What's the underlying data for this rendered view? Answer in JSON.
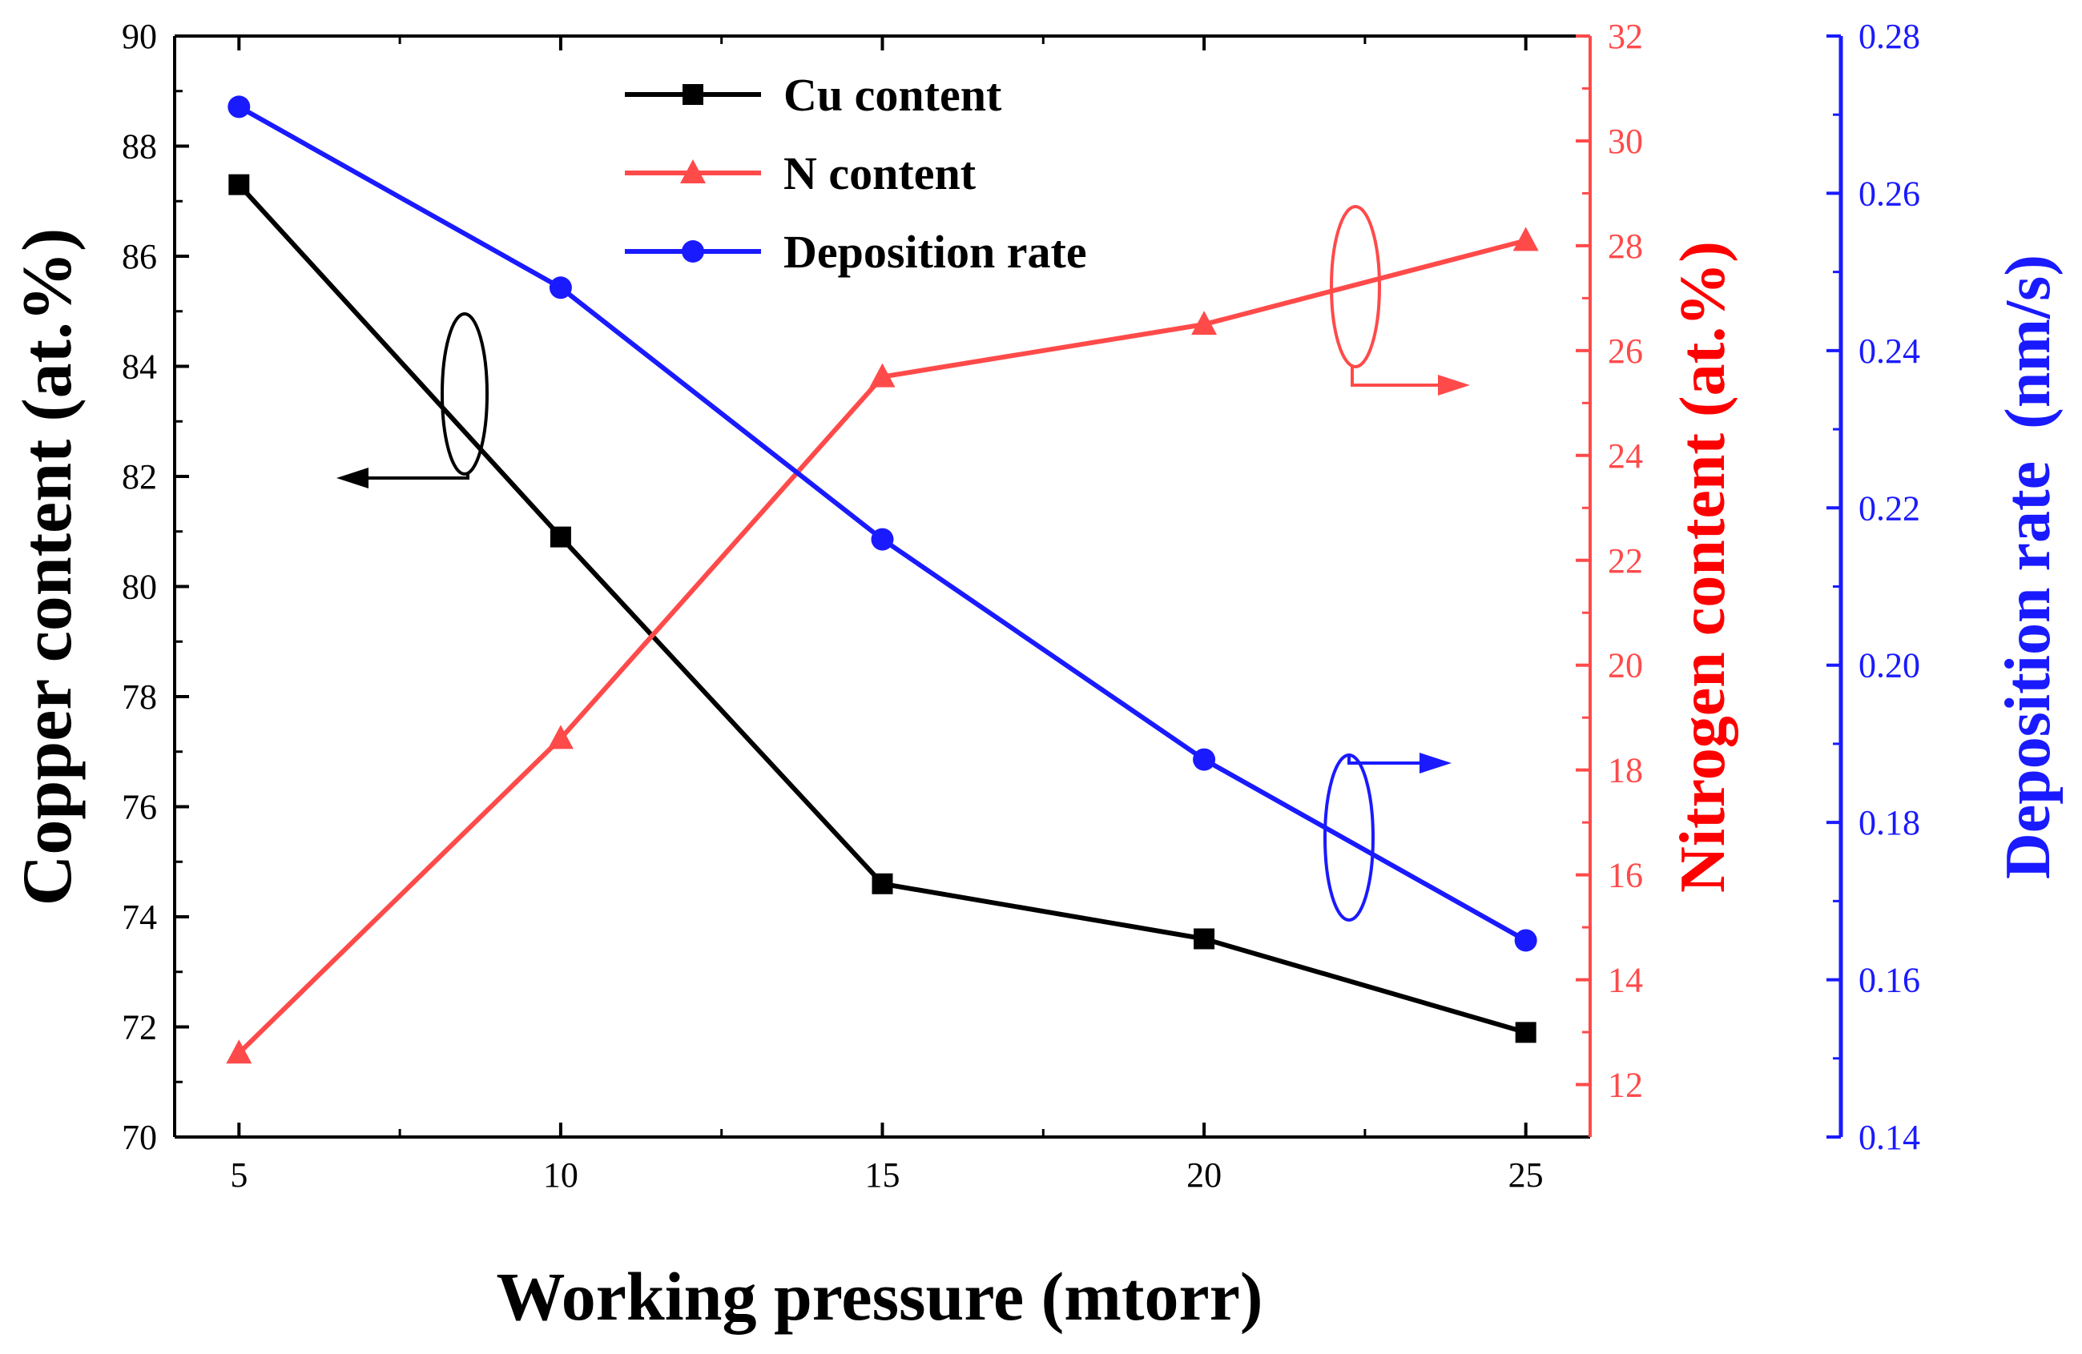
{
  "chart_data": {
    "type": "line",
    "x": [
      5,
      10,
      15,
      20,
      25
    ],
    "xlabel": "Working pressure (mtorr)",
    "xlim": [
      4,
      26
    ],
    "xticks": [
      5,
      10,
      15,
      20,
      25
    ],
    "series": [
      {
        "name": "Cu content",
        "axis": "left",
        "values": [
          87.3,
          80.9,
          74.6,
          73.6,
          71.9
        ],
        "color": "#000000",
        "marker": "square"
      },
      {
        "name": "N content",
        "axis": "right1",
        "values": [
          12.6,
          18.6,
          25.5,
          26.5,
          28.1
        ],
        "color": "#ff4a4a",
        "marker": "triangle"
      },
      {
        "name": "Deposition rate",
        "axis": "right2",
        "values": [
          0.271,
          0.248,
          0.216,
          0.188,
          0.165
        ],
        "color": "#1a1aff",
        "marker": "circle"
      }
    ],
    "axes": {
      "left": {
        "title": "Copper content (at.%)",
        "ylim": [
          70,
          90
        ],
        "ticks": [
          "70",
          "72",
          "74",
          "76",
          "78",
          "80",
          "82",
          "84",
          "86",
          "88",
          "90"
        ],
        "color": "#000000"
      },
      "right1": {
        "title": "Nitrogen content (at.%)",
        "ylim": [
          11,
          32
        ],
        "ticks": [
          "12",
          "14",
          "16",
          "18",
          "20",
          "22",
          "24",
          "26",
          "28",
          "30",
          "32"
        ],
        "color": "#ff4a4a",
        "title_color": "#ff0000"
      },
      "right2": {
        "title_main": "Deposition rate",
        "title_unit": "(nm/s)",
        "ylim": [
          0.14,
          0.28
        ],
        "ticks": [
          "0.14",
          "0.16",
          "0.18",
          "0.20",
          "0.22",
          "0.24",
          "0.26",
          "0.28"
        ],
        "color": "#1a1aff"
      }
    },
    "legend": {
      "placement": "top-center",
      "entries": [
        "Cu content",
        "N content",
        "Deposition rate"
      ]
    }
  }
}
